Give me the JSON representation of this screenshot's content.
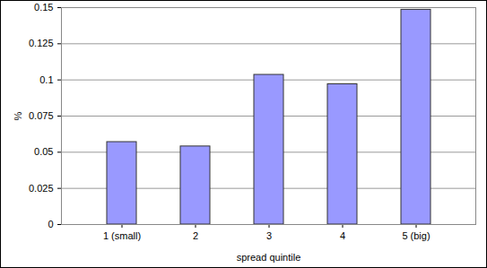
{
  "chart_data": {
    "type": "bar",
    "categories": [
      "1 (small)",
      "2",
      "3",
      "4",
      "5 (big)"
    ],
    "values": [
      0.057,
      0.054,
      0.1035,
      0.097,
      0.1485
    ],
    "color": "#9999ff",
    "xlabel": "spread quintile",
    "ylabel": "%",
    "ylim": [
      0,
      0.15
    ],
    "yticks": [
      0,
      0.025,
      0.05,
      0.075,
      0.1,
      0.125,
      0.15
    ],
    "grid": true
  }
}
